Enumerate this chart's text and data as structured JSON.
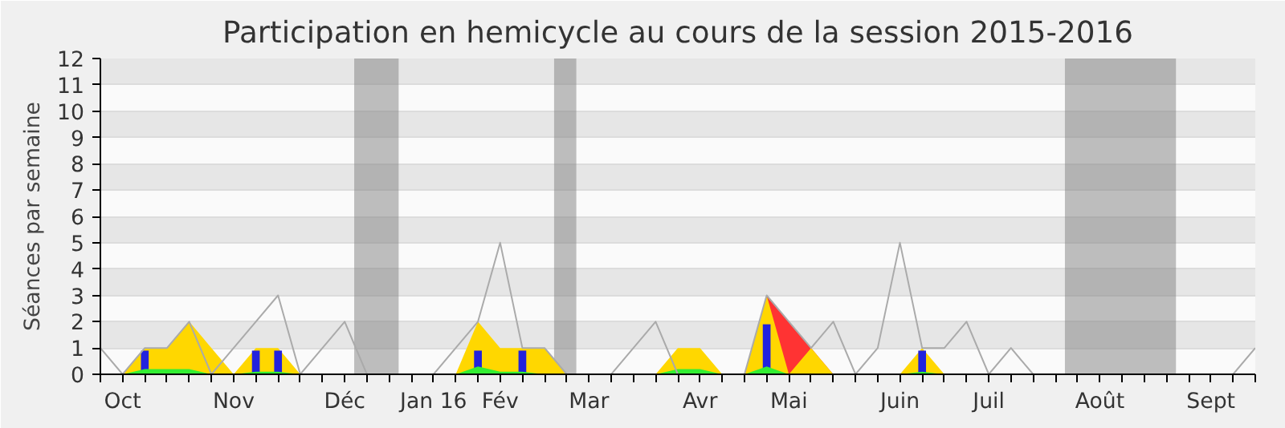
{
  "chart_data": {
    "type": "area",
    "title": "Participation en hemicycle au cours de la session 2015-2016",
    "ylabel": "Séances par semaine",
    "x": [
      "2015-10-01",
      "2015-10-08",
      "2015-10-15",
      "2015-10-22",
      "2015-10-29",
      "2015-11-05",
      "2015-11-12",
      "2015-11-19",
      "2015-11-26",
      "2015-12-03",
      "2015-12-10",
      "2015-12-17",
      "2015-12-24",
      "2015-12-31",
      "2016-01-07",
      "2016-01-14",
      "2016-01-21",
      "2016-01-28",
      "2016-02-04",
      "2016-02-11",
      "2016-02-18",
      "2016-02-25",
      "2016-03-03",
      "2016-03-10",
      "2016-03-17",
      "2016-03-24",
      "2016-03-31",
      "2016-04-07",
      "2016-04-14",
      "2016-04-21",
      "2016-04-28",
      "2016-05-05",
      "2016-05-12",
      "2016-05-19",
      "2016-05-26",
      "2016-06-02",
      "2016-06-09",
      "2016-06-16",
      "2016-06-23",
      "2016-06-30",
      "2016-07-07",
      "2016-07-14",
      "2016-07-21",
      "2016-07-28",
      "2016-08-04",
      "2016-08-11",
      "2016-08-18",
      "2016-08-25",
      "2016-09-01",
      "2016-09-08",
      "2016-09-15",
      "2016-09-22",
      "2016-09-29"
    ],
    "series": [
      {
        "type": "line",
        "color": "#aaaaaa",
        "values": [
          1,
          0,
          1,
          1,
          2,
          0,
          1,
          2,
          3,
          0,
          1,
          2,
          0,
          0,
          0,
          0,
          1,
          2,
          5,
          1,
          1,
          0,
          0,
          0,
          1,
          2,
          0,
          0,
          0,
          0,
          3,
          2,
          1,
          2,
          0,
          1,
          5,
          1,
          1,
          2,
          0,
          1,
          0,
          0,
          0,
          0,
          0,
          0,
          0,
          0,
          0,
          0,
          1
        ]
      },
      {
        "color": "#ff3333",
        "values": [
          null,
          null,
          null,
          null,
          null,
          null,
          null,
          null,
          null,
          null,
          null,
          null,
          null,
          null,
          null,
          null,
          null,
          null,
          null,
          null,
          null,
          null,
          null,
          null,
          null,
          null,
          null,
          null,
          null,
          0,
          3,
          2,
          1,
          0,
          null,
          null,
          null,
          null,
          null,
          null,
          null,
          null,
          null,
          null,
          null,
          null,
          null,
          null,
          null,
          null,
          null,
          null,
          null
        ]
      },
      {
        "color": "#ffd700",
        "values": [
          0,
          0,
          1,
          1,
          2,
          1,
          0,
          1,
          1,
          0,
          0,
          0,
          0,
          0,
          0,
          0,
          0,
          2,
          1,
          1,
          1,
          0,
          0,
          0,
          0,
          0,
          1,
          1,
          0,
          0,
          3,
          0,
          1,
          0,
          0,
          0,
          0,
          1,
          0,
          0,
          0,
          0,
          0,
          0,
          0,
          0,
          0,
          0,
          0,
          0,
          0,
          0,
          0
        ]
      },
      {
        "color": "#33ee33",
        "values": [
          0,
          0,
          0.2,
          0.2,
          0.2,
          0,
          0,
          0.1,
          0.1,
          0,
          0,
          0,
          0,
          0,
          0,
          0,
          0,
          0.3,
          0.1,
          0.1,
          0,
          0,
          0,
          0,
          0,
          0,
          0.2,
          0.2,
          0,
          0,
          0.3,
          0,
          0,
          0,
          0,
          0,
          0,
          0.1,
          0,
          0,
          0,
          0,
          0,
          0,
          0,
          0,
          0,
          0,
          0,
          0,
          0,
          0,
          0
        ]
      },
      {
        "type": "bar",
        "color": "#2222dd",
        "values": [
          null,
          null,
          0.9,
          null,
          null,
          null,
          null,
          0.9,
          0.9,
          null,
          null,
          null,
          null,
          null,
          null,
          null,
          null,
          0.9,
          null,
          0.9,
          null,
          null,
          null,
          null,
          null,
          null,
          null,
          null,
          null,
          null,
          1.9,
          null,
          null,
          null,
          null,
          null,
          null,
          0.9,
          null,
          null,
          null,
          null,
          null,
          null,
          null,
          null,
          null,
          null,
          null,
          null,
          null,
          null,
          null
        ]
      }
    ],
    "xlim": [
      "2015-10-01",
      "2016-09-29"
    ],
    "xticks": [
      {
        "value": "2015-10-01",
        "label": null
      },
      {
        "value": "2015-10-08",
        "label": "Oct"
      },
      {
        "value": "2015-10-15",
        "label": null
      },
      {
        "value": "2015-10-22",
        "label": null
      },
      {
        "value": "2015-10-29",
        "label": null
      },
      {
        "value": "2015-11-05",
        "label": null
      },
      {
        "value": "2015-11-12",
        "label": "Nov"
      },
      {
        "value": "2015-11-19",
        "label": null
      },
      {
        "value": "2015-11-26",
        "label": null
      },
      {
        "value": "2015-12-03",
        "label": null
      },
      {
        "value": "2015-12-10",
        "label": null
      },
      {
        "value": "2015-12-17",
        "label": "Déc"
      },
      {
        "value": "2015-12-24",
        "label": null
      },
      {
        "value": "2015-12-31",
        "label": null
      },
      {
        "value": "2016-01-07",
        "label": null
      },
      {
        "value": "2016-01-14",
        "label": "Jan 16"
      },
      {
        "value": "2016-01-21",
        "label": null
      },
      {
        "value": "2016-01-28",
        "label": null
      },
      {
        "value": "2016-02-04",
        "label": "Fév"
      },
      {
        "value": "2016-02-11",
        "label": null
      },
      {
        "value": "2016-02-18",
        "label": null
      },
      {
        "value": "2016-02-25",
        "label": null
      },
      {
        "value": "2016-03-03",
        "label": "Mar"
      },
      {
        "value": "2016-03-10",
        "label": null
      },
      {
        "value": "2016-03-17",
        "label": null
      },
      {
        "value": "2016-03-24",
        "label": null
      },
      {
        "value": "2016-03-31",
        "label": null
      },
      {
        "value": "2016-04-07",
        "label": "Avr"
      },
      {
        "value": "2016-04-14",
        "label": null
      },
      {
        "value": "2016-04-21",
        "label": null
      },
      {
        "value": "2016-04-28",
        "label": null
      },
      {
        "value": "2016-05-05",
        "label": "Mai"
      },
      {
        "value": "2016-05-12",
        "label": null
      },
      {
        "value": "2016-05-19",
        "label": null
      },
      {
        "value": "2016-05-26",
        "label": null
      },
      {
        "value": "2016-06-02",
        "label": null
      },
      {
        "value": "2016-06-09",
        "label": "Juin"
      },
      {
        "value": "2016-06-16",
        "label": null
      },
      {
        "value": "2016-06-23",
        "label": null
      },
      {
        "value": "2016-06-30",
        "label": null
      },
      {
        "value": "2016-07-07",
        "label": "Juil"
      },
      {
        "value": "2016-07-14",
        "label": null
      },
      {
        "value": "2016-07-21",
        "label": null
      },
      {
        "value": "2016-07-28",
        "label": null
      },
      {
        "value": "2016-08-04",
        "label": null
      },
      {
        "value": "2016-08-11",
        "label": "Août"
      },
      {
        "value": "2016-08-18",
        "label": null
      },
      {
        "value": "2016-08-25",
        "label": null
      },
      {
        "value": "2016-09-01",
        "label": null
      },
      {
        "value": "2016-09-08",
        "label": null
      },
      {
        "value": "2016-09-15",
        "label": "Sept"
      },
      {
        "value": "2016-09-22",
        "label": null
      },
      {
        "value": "2016-09-29",
        "label": null
      }
    ],
    "ylim": [
      0,
      12
    ],
    "yticks": [
      0,
      1,
      2,
      3,
      4,
      5,
      6,
      7,
      8,
      9,
      10,
      11,
      12
    ],
    "bands": [
      {
        "axis": "x",
        "from": "2015-12-20",
        "to": "2016-01-03",
        "color": "#808080"
      },
      {
        "axis": "x",
        "from": "2016-02-21",
        "to": "2016-02-28",
        "color": "#808080"
      },
      {
        "axis": "x",
        "from": "2016-07-31",
        "to": "2016-09-04",
        "color": "#808080"
      }
    ],
    "grid": "y"
  }
}
